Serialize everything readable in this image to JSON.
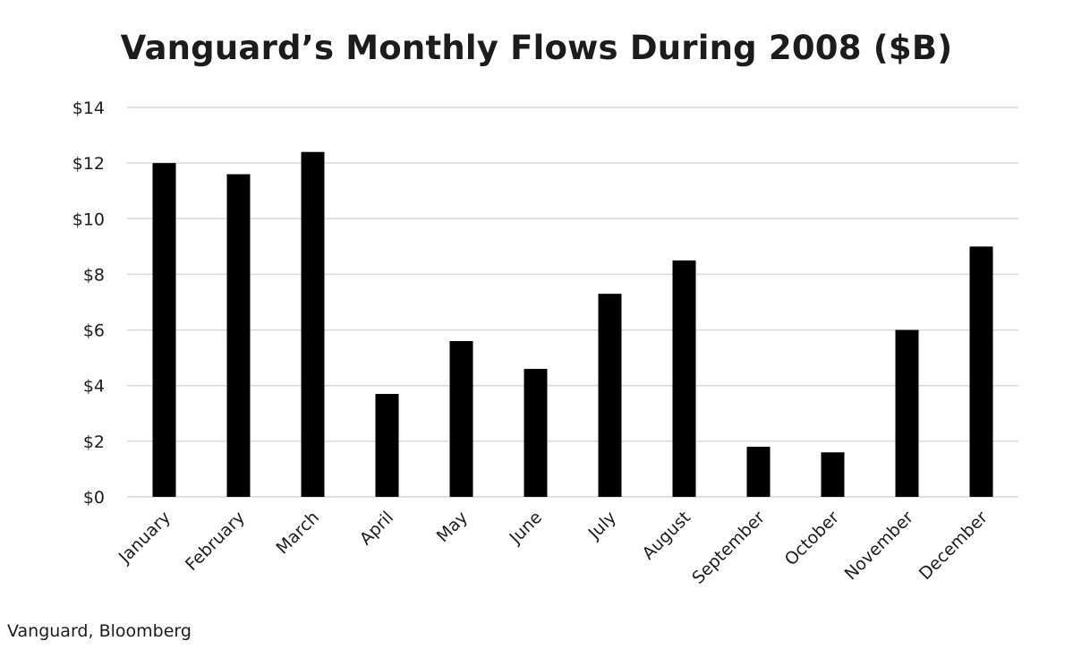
{
  "chart_data": {
    "type": "bar",
    "title": "Vanguard’s Monthly Flows During 2008 ($B)",
    "categories": [
      "January",
      "February",
      "March",
      "April",
      "May",
      "June",
      "July",
      "August",
      "September",
      "October",
      "November",
      "December"
    ],
    "values": [
      12.0,
      11.6,
      12.4,
      3.7,
      5.6,
      4.6,
      7.3,
      8.5,
      1.8,
      1.6,
      6.0,
      9.0
    ],
    "ylim": [
      0,
      14
    ],
    "y_ticks": [
      0,
      2,
      4,
      6,
      8,
      10,
      12,
      14
    ],
    "y_tick_labels": [
      "$0",
      "$2",
      "$4",
      "$6",
      "$8",
      "$10",
      "$12",
      "$14"
    ],
    "xlabel": "",
    "ylabel": "",
    "grid": true,
    "legend": "none",
    "bar_color": "#000000",
    "grid_color": "#d9d9d9"
  },
  "source": "Vanguard, Bloomberg"
}
